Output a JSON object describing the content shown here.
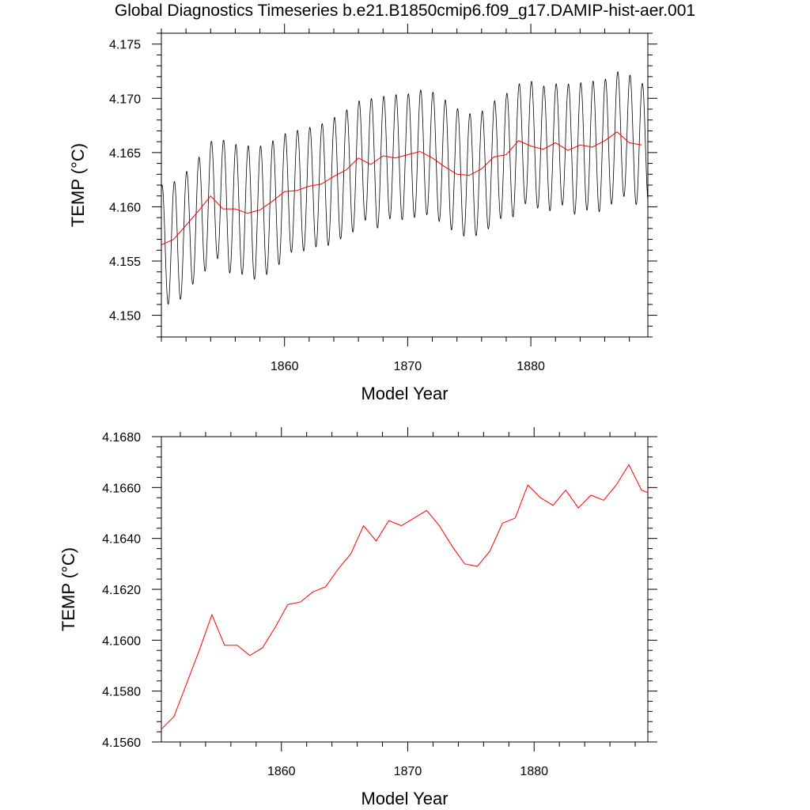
{
  "title": "Global Diagnostics Timeseries b.e21.B1850cmip6.f09_g17.DAMIP-hist-aer.001",
  "chart_data": [
    {
      "type": "line",
      "xlabel": "Model Year",
      "ylabel": "TEMP (°C)",
      "xlim": [
        1850,
        1889.5
      ],
      "ylim": [
        4.148,
        4.176
      ],
      "xticks": [
        1860,
        1870,
        1880
      ],
      "xtick_labels": [
        "1860",
        "1870",
        "1880"
      ],
      "yticks": [
        4.15,
        4.155,
        4.16,
        4.165,
        4.17,
        4.175
      ],
      "ytick_labels": [
        "4.150",
        "4.155",
        "4.160",
        "4.165",
        "4.170",
        "4.175"
      ],
      "grid": false,
      "series": [
        {
          "color": "#000000",
          "style": "monthly",
          "x_start": 1850,
          "points_per_year": 12,
          "annual_amplitude": [
            0.0055,
            0.0056,
            0.0055,
            0.0056,
            0.0057,
            0.0059,
            0.006,
            0.0061,
            0.006,
            0.0059,
            0.0056,
            0.0056,
            0.0056,
            0.0057,
            0.0058,
            0.0058,
            0.0057,
            0.0059,
            0.0058,
            0.0057,
            0.0058,
            0.0058,
            0.0058,
            0.0058,
            0.0057,
            0.0056,
            0.0056,
            0.0057,
            0.0058,
            0.0058,
            0.0057,
            0.0057,
            0.0057,
            0.0059,
            0.006,
            0.006,
            0.0059,
            0.0059,
            0.0057,
            0.0055
          ],
          "annual_means": [
            4.1565,
            4.157,
            4.1583,
            4.1596,
            4.161,
            4.1598,
            4.1598,
            4.1594,
            4.1597,
            4.1605,
            4.1614,
            4.1615,
            4.1619,
            4.1621,
            4.1628,
            4.1634,
            4.1645,
            4.1639,
            4.1647,
            4.1645,
            4.1648,
            4.1651,
            4.1645,
            4.1637,
            4.163,
            4.1629,
            4.1635,
            4.1646,
            4.1648,
            4.1661,
            4.1656,
            4.1653,
            4.1659,
            4.1652,
            4.1657,
            4.1655,
            4.1661,
            4.1669,
            4.1659,
            4.1657
          ]
        },
        {
          "color": "#ff0000",
          "style": "annual",
          "x": [
            1850.0,
            1851.0,
            1852.0,
            1853.0,
            1854.0,
            1855.0,
            1856.0,
            1857.0,
            1858.0,
            1859.0,
            1860.0,
            1861.0,
            1862.0,
            1863.0,
            1864.0,
            1865.0,
            1866.0,
            1867.0,
            1868.0,
            1869.0,
            1870.0,
            1871.0,
            1872.0,
            1873.0,
            1874.0,
            1875.0,
            1876.0,
            1877.0,
            1878.0,
            1879.0,
            1880.0,
            1881.0,
            1882.0,
            1883.0,
            1884.0,
            1885.0,
            1886.0,
            1887.0,
            1888.0,
            1889.0
          ],
          "y": [
            4.1565,
            4.157,
            4.1583,
            4.1596,
            4.161,
            4.1598,
            4.1598,
            4.1594,
            4.1597,
            4.1605,
            4.1614,
            4.1615,
            4.1619,
            4.1621,
            4.1628,
            4.1634,
            4.1645,
            4.1639,
            4.1647,
            4.1645,
            4.1648,
            4.1651,
            4.1645,
            4.1637,
            4.163,
            4.1629,
            4.1635,
            4.1646,
            4.1648,
            4.1661,
            4.1656,
            4.1653,
            4.1659,
            4.1652,
            4.1657,
            4.1655,
            4.1661,
            4.1669,
            4.1659,
            4.1657
          ]
        }
      ]
    },
    {
      "type": "line",
      "xlabel": "Model Year",
      "ylabel": "TEMP (°C)",
      "xlim": [
        1850.5,
        1889.0
      ],
      "ylim": [
        4.156,
        4.168
      ],
      "xticks": [
        1860,
        1870,
        1880
      ],
      "xtick_labels": [
        "1860",
        "1870",
        "1880"
      ],
      "yticks": [
        4.156,
        4.158,
        4.16,
        4.162,
        4.164,
        4.166,
        4.168
      ],
      "ytick_labels": [
        "4.1560",
        "4.1580",
        "4.1600",
        "4.1620",
        "4.1640",
        "4.1660",
        "4.1680"
      ],
      "grid": false,
      "series": [
        {
          "color": "#ff0000",
          "style": "annual",
          "x": [
            1850.5,
            1851.5,
            1852.5,
            1853.5,
            1854.5,
            1855.5,
            1856.5,
            1857.5,
            1858.5,
            1859.5,
            1860.5,
            1861.5,
            1862.5,
            1863.5,
            1864.5,
            1865.5,
            1866.5,
            1867.5,
            1868.5,
            1869.5,
            1870.5,
            1871.5,
            1872.5,
            1873.5,
            1874.5,
            1875.5,
            1876.5,
            1877.5,
            1878.5,
            1879.5,
            1880.5,
            1881.5,
            1882.5,
            1883.5,
            1884.5,
            1885.5,
            1886.5,
            1887.5,
            1888.5,
            1889.0
          ],
          "y": [
            4.1565,
            4.157,
            4.1583,
            4.1596,
            4.161,
            4.1598,
            4.1598,
            4.1594,
            4.1597,
            4.1605,
            4.1614,
            4.1615,
            4.1619,
            4.1621,
            4.1628,
            4.1634,
            4.1645,
            4.1639,
            4.1647,
            4.1645,
            4.1648,
            4.1651,
            4.1645,
            4.1637,
            4.163,
            4.1629,
            4.1635,
            4.1646,
            4.1648,
            4.1661,
            4.1656,
            4.1653,
            4.1659,
            4.1652,
            4.1657,
            4.1655,
            4.1661,
            4.1669,
            4.1659,
            4.1658
          ]
        }
      ]
    }
  ]
}
